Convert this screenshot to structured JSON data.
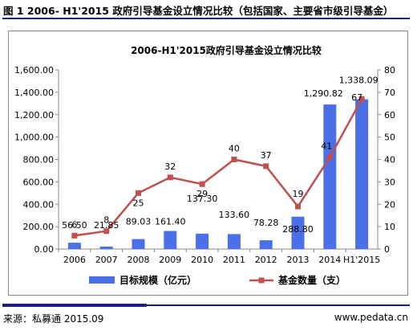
{
  "figure_title": "图 1 2006- H1'2015 政府引导基金设立情况比较（包括国家、主要省市级引导基金）",
  "source_text": "来源：私募通 2015.09",
  "site_text": "www.pedata.cn",
  "colors": {
    "bar": "#4a6fe6",
    "line": "#c0504d",
    "rule": "#1f1f7a"
  },
  "chart_data": {
    "type": "bar",
    "title": "2006-H1'2015政府引导基金设立情况比较",
    "categories": [
      "2006",
      "2007",
      "2008",
      "2009",
      "2010",
      "2011",
      "2012",
      "2013",
      "2014",
      "H1'2015"
    ],
    "series": [
      {
        "name": "目标规模（亿元）",
        "type": "bar",
        "axis": "left",
        "values": [
          56.5,
          21.85,
          89.03,
          161.4,
          137.3,
          133.6,
          78.28,
          288.8,
          1290.82,
          1338.09
        ],
        "labels": [
          "56.50",
          "21.85",
          "89.03",
          "161.40",
          "137.30",
          "133.60",
          "78.28",
          "288.80",
          "1,290.82",
          "1,338.09"
        ]
      },
      {
        "name": "基金数量（支）",
        "type": "line",
        "axis": "right",
        "values": [
          6,
          8,
          25,
          32,
          29,
          40,
          37,
          19,
          41,
          67
        ],
        "labels": [
          "6",
          "8",
          "25",
          "32",
          "29",
          "40",
          "37",
          "19",
          "41",
          "67"
        ]
      }
    ],
    "y_left": {
      "min": 0,
      "max": 1600,
      "ticks": [
        "0.00",
        "200.00",
        "400.00",
        "600.00",
        "800.00",
        "1,000.00",
        "1,200.00",
        "1,400.00",
        "1,600.00"
      ]
    },
    "y_right": {
      "min": 0,
      "max": 80,
      "ticks": [
        "0",
        "10",
        "20",
        "30",
        "40",
        "50",
        "60",
        "70",
        "80"
      ]
    },
    "legend_position": "bottom",
    "grid": false
  }
}
